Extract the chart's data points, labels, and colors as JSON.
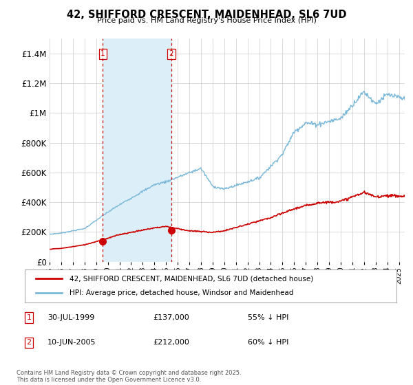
{
  "title": "42, SHIFFORD CRESCENT, MAIDENHEAD, SL6 7UD",
  "subtitle": "Price paid vs. HM Land Registry's House Price Index (HPI)",
  "ylim": [
    0,
    1500000
  ],
  "yticks": [
    0,
    200000,
    400000,
    600000,
    800000,
    1000000,
    1200000,
    1400000
  ],
  "ytick_labels": [
    "£0",
    "£200K",
    "£400K",
    "£600K",
    "£800K",
    "£1M",
    "£1.2M",
    "£1.4M"
  ],
  "hpi_color": "#7ab8d9",
  "price_color": "#cc0000",
  "vline_color": "#cc0000",
  "shade_color": "#dceef7",
  "background_color": "#ffffff",
  "grid_color": "#cccccc",
  "legend_label_red": "42, SHIFFORD CRESCENT, MAIDENHEAD, SL6 7UD (detached house)",
  "legend_label_blue": "HPI: Average price, detached house, Windsor and Maidenhead",
  "transaction1_date": "30-JUL-1999",
  "transaction1_price": 137000,
  "transaction1_note": "55% ↓ HPI",
  "transaction2_date": "10-JUN-2005",
  "transaction2_price": 212000,
  "transaction2_note": "60% ↓ HPI",
  "footnote": "Contains HM Land Registry data © Crown copyright and database right 2025.\nThis data is licensed under the Open Government Licence v3.0.",
  "vline_x1": 1999.58,
  "vline_x2": 2005.44
}
